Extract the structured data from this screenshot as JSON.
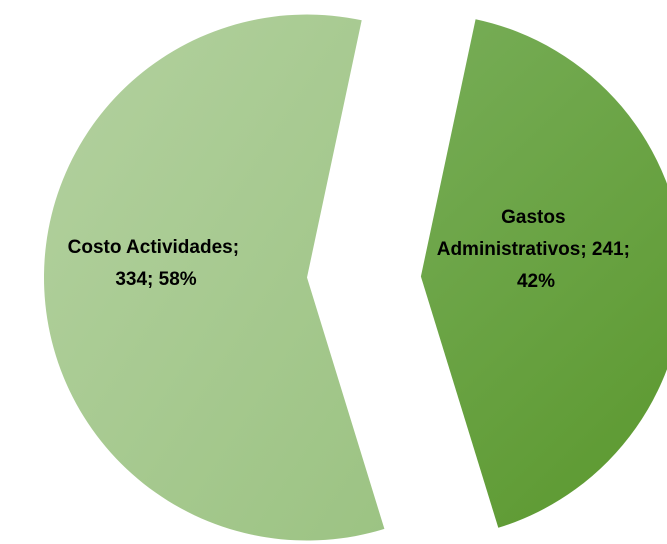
{
  "chart_data": {
    "type": "pie",
    "exploded": true,
    "slices": [
      {
        "label_lines": [
          "Costo Actividades;",
          "334; 58%"
        ],
        "category": "Costo Actividades",
        "value": 334,
        "percent": 58,
        "color_light": "#b3d19f",
        "color_dark": "#9cc383"
      },
      {
        "label_lines": [
          "Gastos",
          "Administrativos; 241;",
          "42%"
        ],
        "category": "Gastos Administrativos",
        "value": 241,
        "percent": 42,
        "color_light": "#77ad57",
        "color_dark": "#5f9b34"
      }
    ]
  }
}
